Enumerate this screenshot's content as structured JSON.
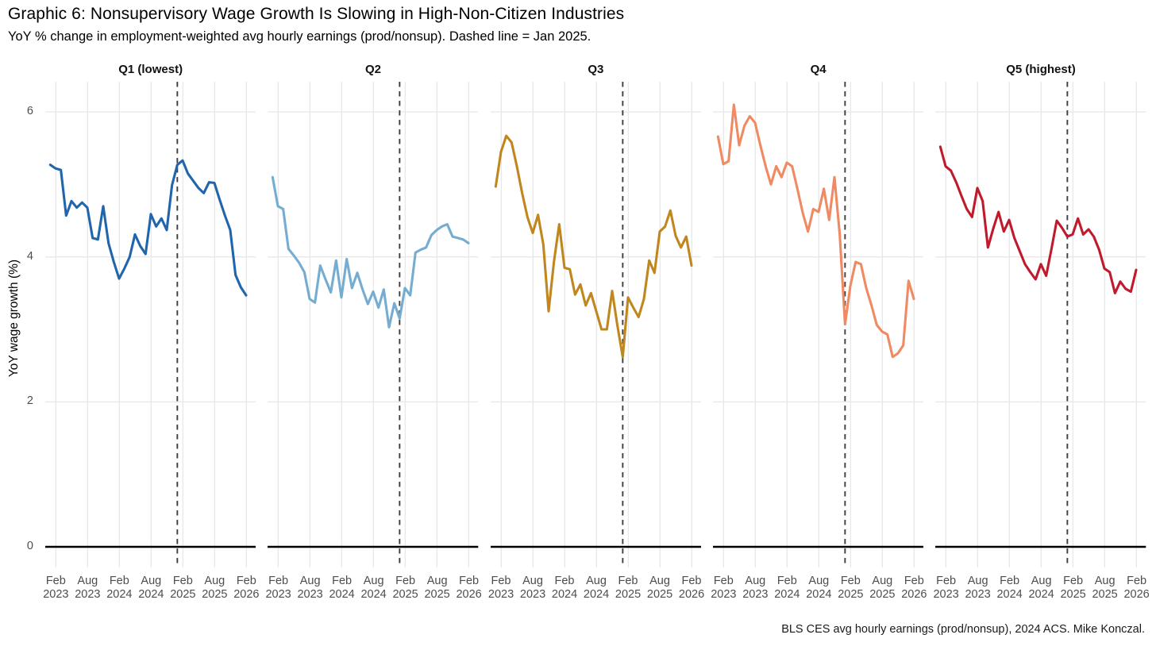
{
  "header": {
    "title": "Graphic 6: Nonsupervisory Wage Growth Is Slowing in High-Non-Citizen Industries",
    "subtitle": "YoY % change in employment-weighted avg hourly earnings (prod/nonsup). Dashed line = Jan 2025."
  },
  "caption": "BLS CES avg hourly earnings (prod/nonsup), 2024 ACS. Mike Konczal.",
  "y_axis": {
    "title": "YoY wage growth (%)",
    "ticks": [
      6,
      4,
      2,
      0
    ]
  },
  "x_axis": {
    "tick_labels": [
      [
        "Feb",
        "2023"
      ],
      [
        "Aug",
        "2023"
      ],
      [
        "Feb",
        "2024"
      ],
      [
        "Aug",
        "2024"
      ],
      [
        "Feb",
        "2025"
      ],
      [
        "Aug",
        "2025"
      ],
      [
        "Feb",
        "2026"
      ]
    ]
  },
  "chart_data": {
    "type": "line",
    "title": "Graphic 6: Nonsupervisory Wage Growth Is Slowing in High-Non-Citizen Industries",
    "subtitle": "YoY % change in employment-weighted avg hourly earnings (prod/nonsup). Dashed line = Jan 2025.",
    "ylabel": "YoY wage growth (%)",
    "ylim": [
      -0.3,
      6.45
    ],
    "y_ticks": [
      0,
      2,
      4,
      6
    ],
    "grid": true,
    "legend_position": "none",
    "facet_layout": "5 columns, shared y axis",
    "dashed_vline_at": "Jan 2025",
    "x": [
      "Jan 2023",
      "Feb 2023",
      "Mar 2023",
      "Apr 2023",
      "May 2023",
      "Jun 2023",
      "Jul 2023",
      "Aug 2023",
      "Sep 2023",
      "Oct 2023",
      "Nov 2023",
      "Dec 2023",
      "Jan 2024",
      "Feb 2024",
      "Mar 2024",
      "Apr 2024",
      "May 2024",
      "Jun 2024",
      "Jul 2024",
      "Aug 2024",
      "Sep 2024",
      "Oct 2024",
      "Nov 2024",
      "Dec 2024",
      "Jan 2025",
      "Feb 2025",
      "Mar 2025",
      "Apr 2025",
      "May 2025",
      "Jun 2025",
      "Jul 2025",
      "Aug 2025",
      "Sep 2025",
      "Oct 2025",
      "Nov 2025",
      "Dec 2025",
      "Jan 2026",
      "Feb 2026"
    ],
    "series": [
      {
        "name": "Q1 (lowest)",
        "color": "#2166ac",
        "values": [
          5.27,
          5.22,
          5.2,
          4.57,
          4.77,
          4.68,
          4.75,
          4.68,
          4.26,
          4.24,
          4.7,
          4.19,
          3.93,
          3.7,
          3.84,
          4.0,
          4.31,
          4.15,
          4.04,
          4.59,
          4.42,
          4.53,
          4.37,
          4.99,
          5.27,
          5.33,
          5.15,
          5.05,
          4.95,
          4.88,
          5.03,
          5.02,
          4.79,
          4.57,
          4.37,
          3.75,
          3.58,
          3.47
        ]
      },
      {
        "name": "Q2",
        "color": "#74add1",
        "values": [
          5.1,
          4.7,
          4.66,
          4.11,
          4.02,
          3.92,
          3.79,
          3.42,
          3.37,
          3.88,
          3.69,
          3.51,
          3.95,
          3.44,
          3.97,
          3.57,
          3.78,
          3.55,
          3.35,
          3.52,
          3.3,
          3.55,
          3.03,
          3.36,
          3.15,
          3.57,
          3.47,
          4.06,
          4.1,
          4.13,
          4.3,
          4.37,
          4.42,
          4.45,
          4.28,
          4.26,
          4.24,
          4.19
        ]
      },
      {
        "name": "Q3",
        "color": "#c1871f",
        "values": [
          4.97,
          5.45,
          5.67,
          5.58,
          5.25,
          4.88,
          4.55,
          4.33,
          4.58,
          4.17,
          3.25,
          3.93,
          4.45,
          3.85,
          3.83,
          3.48,
          3.62,
          3.33,
          3.5,
          3.25,
          3.0,
          3.0,
          3.53,
          3.05,
          2.62,
          3.44,
          3.3,
          3.17,
          3.42,
          3.95,
          3.78,
          4.35,
          4.42,
          4.64,
          4.29,
          4.13,
          4.28,
          3.88
        ]
      },
      {
        "name": "Q4",
        "color": "#ef8a62",
        "values": [
          5.66,
          5.28,
          5.32,
          6.1,
          5.54,
          5.81,
          5.94,
          5.85,
          5.54,
          5.25,
          5.0,
          5.25,
          5.1,
          5.3,
          5.25,
          4.94,
          4.61,
          4.35,
          4.66,
          4.62,
          4.94,
          4.51,
          5.1,
          4.31,
          3.07,
          3.6,
          3.93,
          3.9,
          3.57,
          3.33,
          3.06,
          2.97,
          2.93,
          2.62,
          2.67,
          2.78,
          3.67,
          3.42
        ]
      },
      {
        "name": "Q5 (highest)",
        "color": "#bf1b2c",
        "values": [
          5.52,
          5.25,
          5.19,
          5.03,
          4.84,
          4.66,
          4.55,
          4.95,
          4.77,
          4.13,
          4.39,
          4.62,
          4.35,
          4.51,
          4.26,
          4.08,
          3.9,
          3.79,
          3.69,
          3.9,
          3.74,
          4.11,
          4.5,
          4.4,
          4.28,
          4.31,
          4.53,
          4.31,
          4.38,
          4.28,
          4.1,
          3.84,
          3.79,
          3.5,
          3.66,
          3.56,
          3.52,
          3.82
        ]
      }
    ]
  },
  "style_colors": {
    "background": "#ffffff",
    "gridline": "#e8e8e8",
    "zero_axis_line": "#000000",
    "dashed_vline": "#3f3f3f",
    "tick_label": "#4d4d4d"
  }
}
